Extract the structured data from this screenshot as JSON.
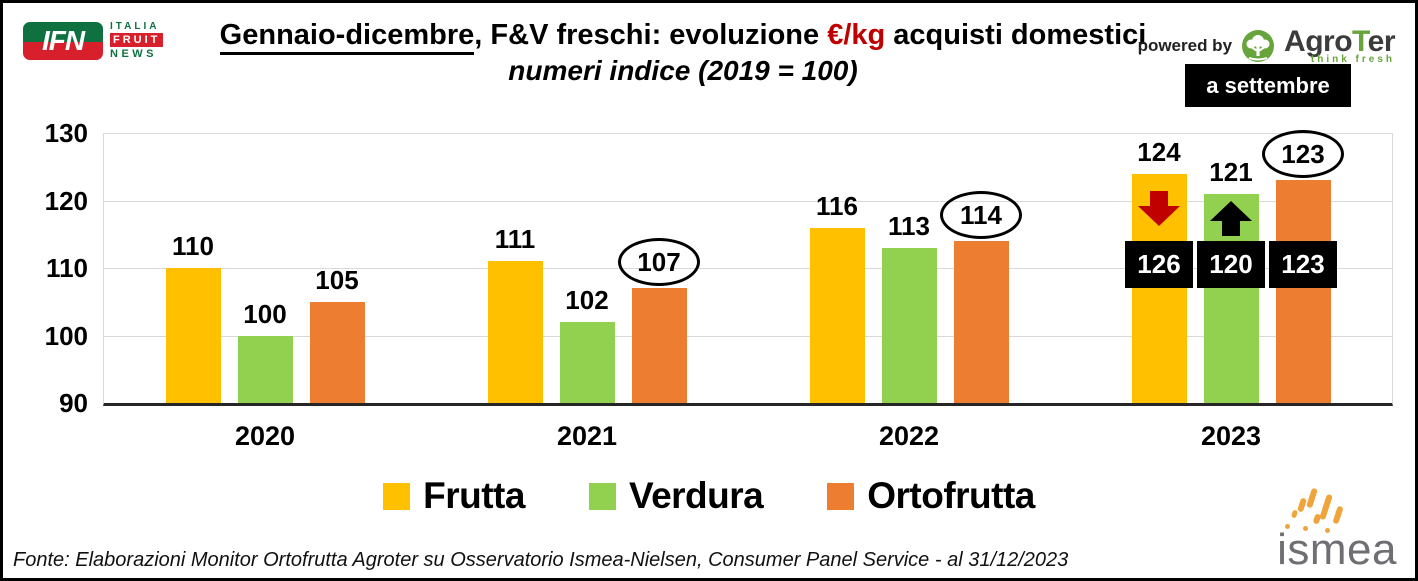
{
  "header": {
    "ifn_logo": {
      "monogram": "IFN",
      "line1": "ITALIA",
      "line2": "FRUIT",
      "line3": "NEWS"
    },
    "title": {
      "underlined": "Gennaio-dicembre",
      "mid": ", F&V freschi: evoluzione ",
      "highlight": "€/kg",
      "rest": " acquisti domestici"
    },
    "subtitle": "numeri indice (2019 = 100)",
    "powered_by": "powered by",
    "agroter": {
      "part1": "Agro",
      "part2": "T",
      "part3": "er",
      "tagline": "think fresh"
    },
    "period_badge": "a settembre"
  },
  "chart_data": {
    "type": "bar",
    "title": "Gennaio-dicembre, F&V freschi: evoluzione €/kg acquisti domestici",
    "subtitle": "numeri indice (2019 = 100)",
    "categories": [
      "2020",
      "2021",
      "2022",
      "2023"
    ],
    "series": [
      {
        "name": "Frutta",
        "color": "#FFC000",
        "values": [
          110,
          111,
          116,
          124
        ],
        "circled": [
          false,
          false,
          false,
          false
        ]
      },
      {
        "name": "Verdura",
        "color": "#92D050",
        "values": [
          100,
          102,
          113,
          121
        ],
        "circled": [
          false,
          false,
          false,
          false
        ]
      },
      {
        "name": "Ortofrutta",
        "color": "#ED7D31",
        "values": [
          105,
          107,
          114,
          123
        ],
        "circled": [
          false,
          true,
          true,
          true
        ]
      }
    ],
    "ylim": [
      90,
      130
    ],
    "yticks": [
      90,
      100,
      110,
      120,
      130
    ],
    "grid": true,
    "legend_position": "bottom",
    "annotations": [
      {
        "category_index": 3,
        "badges": [
          {
            "series_index": 0,
            "value": 126,
            "arrow": "down",
            "arrow_color": "#C00000"
          },
          {
            "series_index": 1,
            "value": 120,
            "arrow": "up",
            "arrow_color": "#000000"
          },
          {
            "series_index": 2,
            "value": 123,
            "arrow": null,
            "arrow_color": null
          }
        ]
      }
    ]
  },
  "footer": {
    "source": "Fonte: Elaborazioni Monitor Ortofrutta Agroter su Osservatorio Ismea-Nielsen, Consumer Panel Service - al 31/12/2023",
    "ismea_logo": "ismea"
  }
}
